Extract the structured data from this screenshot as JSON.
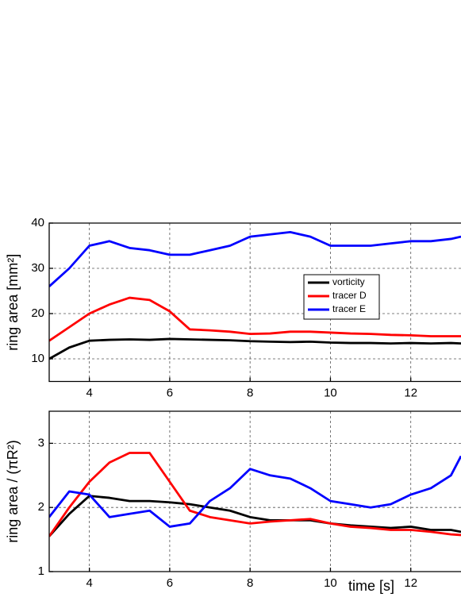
{
  "chart_data": [
    {
      "type": "line",
      "y_label": "ring area [mm²]",
      "x": [
        3,
        3.5,
        4,
        4.5,
        5,
        5.5,
        6,
        6.5,
        7,
        7.5,
        8,
        8.5,
        9,
        9.5,
        10,
        10.5,
        11,
        11.5,
        12,
        12.5,
        13,
        13.25
      ],
      "series": [
        {
          "name": "vorticity",
          "color": "#000000",
          "values": [
            10,
            12.5,
            14,
            14.2,
            14.3,
            14.2,
            14.4,
            14.3,
            14.2,
            14.1,
            13.9,
            13.8,
            13.7,
            13.8,
            13.6,
            13.5,
            13.5,
            13.4,
            13.5,
            13.4,
            13.5,
            13.4
          ]
        },
        {
          "name": "tracer D",
          "color": "#ff0000",
          "values": [
            14,
            17,
            20,
            22,
            23.5,
            23,
            20.5,
            16.5,
            16.3,
            16,
            15.5,
            15.6,
            16,
            16,
            15.8,
            15.6,
            15.5,
            15.3,
            15.2,
            15,
            15,
            15
          ]
        },
        {
          "name": "tracer E",
          "color": "#0000ff",
          "values": [
            26,
            30,
            35,
            36,
            34.5,
            34,
            33,
            33,
            34,
            35,
            37,
            37.5,
            38,
            37,
            35,
            35,
            35,
            35.5,
            36,
            36,
            36.5,
            37
          ]
        }
      ],
      "xlim": [
        3,
        13.25
      ],
      "ylim": [
        5,
        40
      ],
      "xticks": [
        4,
        6,
        8,
        10,
        12
      ],
      "yticks": [
        10,
        20,
        30,
        40
      ],
      "grid": true,
      "legend": "center right"
    },
    {
      "type": "line",
      "y_label": "ring area / (πR²)",
      "x_label": "time [s]",
      "x": [
        3,
        3.5,
        4,
        4.5,
        5,
        5.5,
        6,
        6.5,
        7,
        7.5,
        8,
        8.5,
        9,
        9.5,
        10,
        10.5,
        11,
        11.5,
        12,
        12.5,
        13,
        13.25
      ],
      "series": [
        {
          "name": "vorticity",
          "color": "#000000",
          "values": [
            1.55,
            1.9,
            2.18,
            2.15,
            2.1,
            2.1,
            2.08,
            2.05,
            2.0,
            1.95,
            1.85,
            1.8,
            1.8,
            1.8,
            1.75,
            1.72,
            1.7,
            1.68,
            1.7,
            1.65,
            1.65,
            1.62
          ]
        },
        {
          "name": "tracer D",
          "color": "#ff0000",
          "values": [
            1.55,
            2.0,
            2.4,
            2.7,
            2.85,
            2.85,
            2.4,
            1.95,
            1.85,
            1.8,
            1.75,
            1.78,
            1.8,
            1.82,
            1.75,
            1.7,
            1.68,
            1.65,
            1.65,
            1.62,
            1.58,
            1.57
          ]
        },
        {
          "name": "tracer E",
          "color": "#0000ff",
          "values": [
            1.85,
            2.25,
            2.2,
            1.85,
            1.9,
            1.95,
            1.7,
            1.75,
            2.1,
            2.3,
            2.6,
            2.5,
            2.45,
            2.3,
            2.1,
            2.05,
            2.0,
            2.05,
            2.2,
            2.3,
            2.5,
            2.8
          ]
        }
      ],
      "xlim": [
        3,
        13.25
      ],
      "ylim": [
        1,
        3.5
      ],
      "xticks": [
        4,
        6,
        8,
        10,
        12
      ],
      "yticks": [
        1,
        2,
        3
      ],
      "grid": true
    }
  ]
}
